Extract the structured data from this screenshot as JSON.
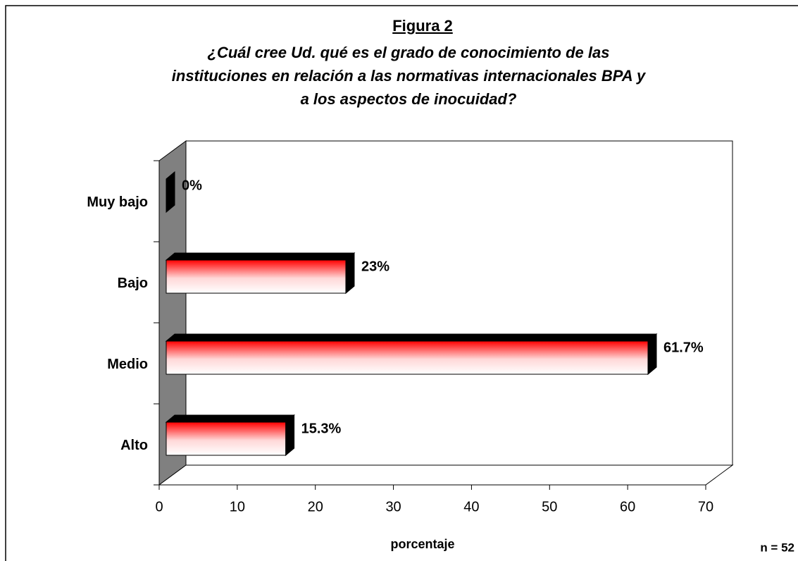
{
  "chart_data": {
    "type": "bar",
    "orientation": "horizontal",
    "title": "Figura 2",
    "subtitle": [
      "¿Cuál cree Ud. qué es el grado de conocimiento de las",
      "instituciones en relación a las normativas internacionales BPA y",
      "a los aspectos de inocuidad?"
    ],
    "categories": [
      "Muy bajo",
      "Bajo",
      "Medio",
      "Alto"
    ],
    "values": [
      0,
      23,
      61.7,
      15.3
    ],
    "value_labels": [
      "0%",
      "23%",
      "61.7%",
      "15.3%"
    ],
    "color": "#ff0000",
    "xlim": [
      0,
      70
    ],
    "xticks": [
      0,
      10,
      20,
      30,
      40,
      50,
      60,
      70
    ],
    "xlabel": "porcentaje",
    "annotation": "n = 52"
  }
}
